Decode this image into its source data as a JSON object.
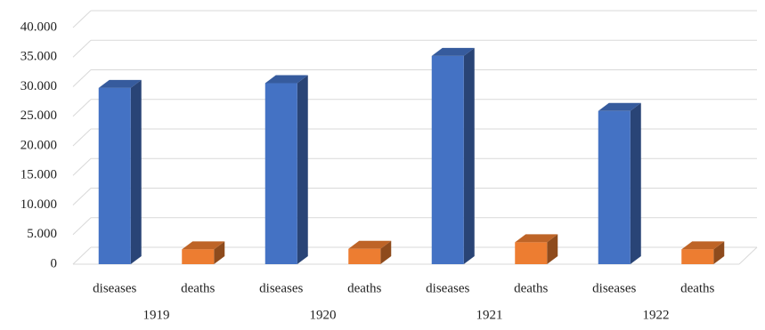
{
  "chart_data": {
    "type": "bar3d",
    "categories": [
      "1919",
      "1920",
      "1921",
      "1922"
    ],
    "series": [
      {
        "name": "diseases",
        "color": "#4472c4",
        "values": [
          29800,
          30600,
          35200,
          25900
        ]
      },
      {
        "name": "deaths",
        "color": "#ed7d31",
        "values": [
          2500,
          2600,
          3700,
          2500
        ]
      }
    ],
    "ylim": [
      0,
      40000
    ],
    "yticks": [
      0,
      {
        "value": 5000,
        "label": "5.000"
      },
      {
        "value": 10000,
        "label": "10.000"
      },
      {
        "value": 15000,
        "label": "15.000"
      },
      {
        "value": 20000,
        "label": "20.000"
      },
      {
        "value": 25000,
        "label": "25.000"
      },
      {
        "value": 30000,
        "label": "30.000"
      },
      {
        "value": 35000,
        "label": "35.000"
      },
      {
        "value": 40000,
        "label": "40.000"
      }
    ],
    "grid": true
  }
}
